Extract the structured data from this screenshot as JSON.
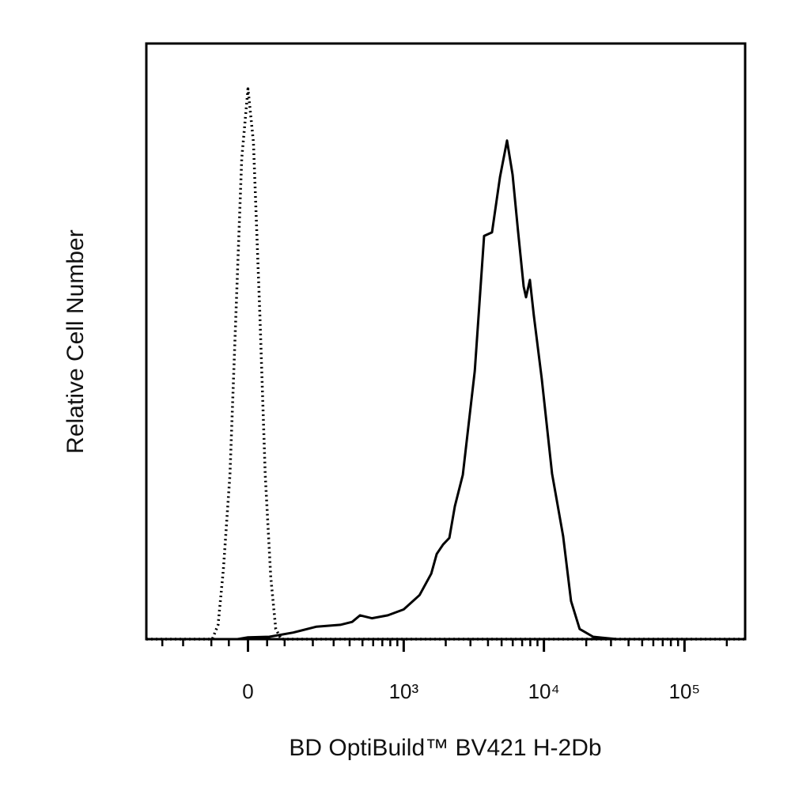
{
  "chart_data": {
    "type": "line",
    "xlabel": "BD OptiBuild™ BV421 H-2Db",
    "ylabel": "Relative Cell Number",
    "xscale": "biexponential",
    "xlim": [
      -400,
      270000
    ],
    "ylim": [
      0,
      100
    ],
    "xticks": [
      0,
      {
        "value": 1000,
        "label": "10³"
      },
      {
        "value": 10000,
        "label": "10⁴"
      },
      {
        "value": 100000,
        "label": "10⁵"
      }
    ],
    "xminorticks": [
      -300,
      -200,
      -100,
      -50,
      50,
      100,
      200,
      300,
      400,
      500,
      600,
      700,
      800,
      900,
      2000,
      3000,
      4000,
      5000,
      6000,
      7000,
      8000,
      9000,
      20000,
      30000,
      40000,
      50000,
      60000,
      70000,
      80000,
      90000,
      200000
    ],
    "series": [
      {
        "color": "#000000",
        "style": "dotted",
        "x": [
          -400,
          -97,
          -80,
          -65,
          -47,
          -33,
          -16,
          0,
          14,
          31,
          45,
          60,
          74,
          90,
          270000
        ],
        "values": [
          0,
          0,
          2.4,
          11.7,
          27.6,
          51.5,
          80.7,
          92.4,
          83.4,
          54.2,
          27.6,
          10.4,
          1.7,
          0,
          0
        ]
      },
      {
        "color": "#000000",
        "style": "solid",
        "x": [
          -400,
          -27,
          0,
          56,
          127,
          216,
          339,
          418,
          480,
          587,
          768,
          1000,
          1300,
          1575,
          1725,
          1915,
          2123,
          2323,
          2647,
          3218,
          3752,
          4270,
          4867,
          5464,
          5982,
          6547,
          7175,
          7458,
          7944,
          8478,
          9656,
          11430,
          13690,
          15590,
          17960,
          22390,
          32970,
          270000
        ],
        "values": [
          0,
          0,
          0.3,
          0.4,
          1.1,
          2.1,
          2.4,
          2.9,
          4.0,
          3.5,
          4.0,
          5.0,
          7.4,
          11,
          14.3,
          15.9,
          17,
          22.3,
          27.6,
          45,
          67.7,
          68.3,
          77.6,
          83.7,
          78,
          68.5,
          59.2,
          57.4,
          60.3,
          54.3,
          43.7,
          27.8,
          17.3,
          6.4,
          1.7,
          0.4,
          0,
          0
        ]
      }
    ]
  }
}
